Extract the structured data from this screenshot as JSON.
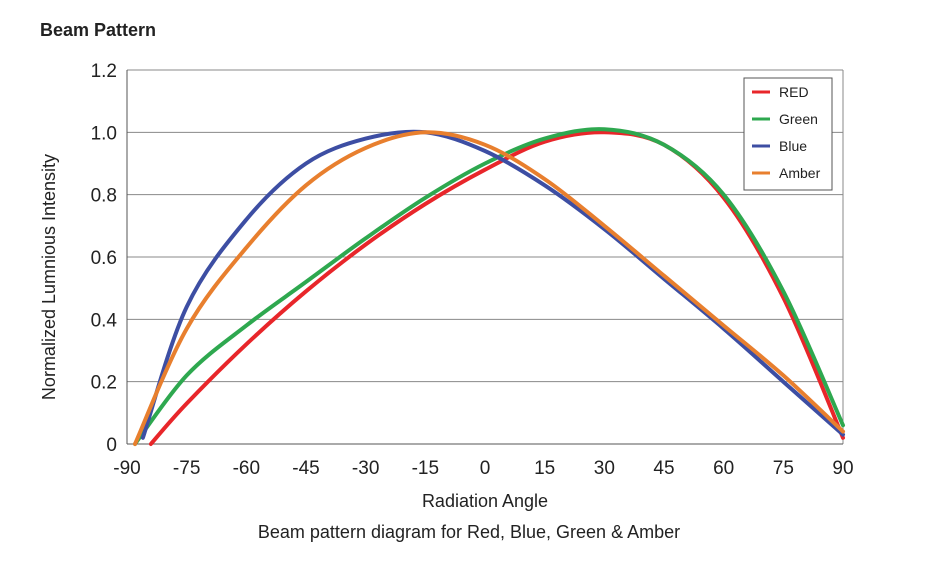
{
  "heading": "Beam Pattern",
  "caption": "Beam pattern diagram for Red, Blue, Green & Amber",
  "chart_data": {
    "type": "line",
    "title": "Beam Pattern",
    "xlabel": "Radiation Angle",
    "ylabel": "Normalized Lumnious Intensity",
    "xlim": [
      -90,
      90
    ],
    "ylim": [
      0,
      1.2
    ],
    "xticks": [
      -90,
      -75,
      -60,
      -45,
      -30,
      -15,
      0,
      15,
      30,
      45,
      60,
      75,
      90
    ],
    "xtick_labels": [
      "-90",
      "-75",
      "-60",
      "-45",
      "-30",
      "-15",
      "0",
      "15",
      "30",
      "45",
      "60",
      "75",
      "90"
    ],
    "yticks": [
      0,
      0.2,
      0.4,
      0.6,
      0.8,
      1.0,
      1.2
    ],
    "ytick_labels": [
      "0",
      "0.2",
      "0.4",
      "0.6",
      "0.8",
      "1.0",
      "1.2"
    ],
    "grid": "horizontal",
    "legend_position": "top-right",
    "series": [
      {
        "name": "RED",
        "color": "#e8262a",
        "x": [
          -84,
          -75,
          -60,
          -45,
          -30,
          -15,
          0,
          15,
          30,
          45,
          60,
          75,
          90
        ],
        "y": [
          0,
          0.13,
          0.32,
          0.49,
          0.64,
          0.77,
          0.88,
          0.97,
          1.0,
          0.96,
          0.79,
          0.47,
          0.02
        ]
      },
      {
        "name": "Green",
        "color": "#2ea84f",
        "x": [
          -88,
          -75,
          -60,
          -45,
          -30,
          -15,
          0,
          15,
          30,
          45,
          60,
          75,
          90
        ],
        "y": [
          0,
          0.22,
          0.38,
          0.52,
          0.66,
          0.79,
          0.9,
          0.98,
          1.01,
          0.96,
          0.8,
          0.49,
          0.06
        ]
      },
      {
        "name": "Blue",
        "color": "#3d4ea3",
        "x": [
          -86,
          -75,
          -60,
          -45,
          -30,
          -15,
          0,
          15,
          30,
          45,
          60,
          75,
          90
        ],
        "y": [
          0.02,
          0.44,
          0.72,
          0.9,
          0.98,
          1.0,
          0.94,
          0.83,
          0.69,
          0.53,
          0.37,
          0.2,
          0.03
        ]
      },
      {
        "name": "Amber",
        "color": "#e87f2e",
        "x": [
          -88,
          -75,
          -60,
          -45,
          -30,
          -15,
          0,
          15,
          30,
          45,
          60,
          75,
          90
        ],
        "y": [
          0,
          0.37,
          0.63,
          0.83,
          0.95,
          1.0,
          0.96,
          0.85,
          0.7,
          0.54,
          0.38,
          0.22,
          0.04
        ]
      }
    ]
  }
}
